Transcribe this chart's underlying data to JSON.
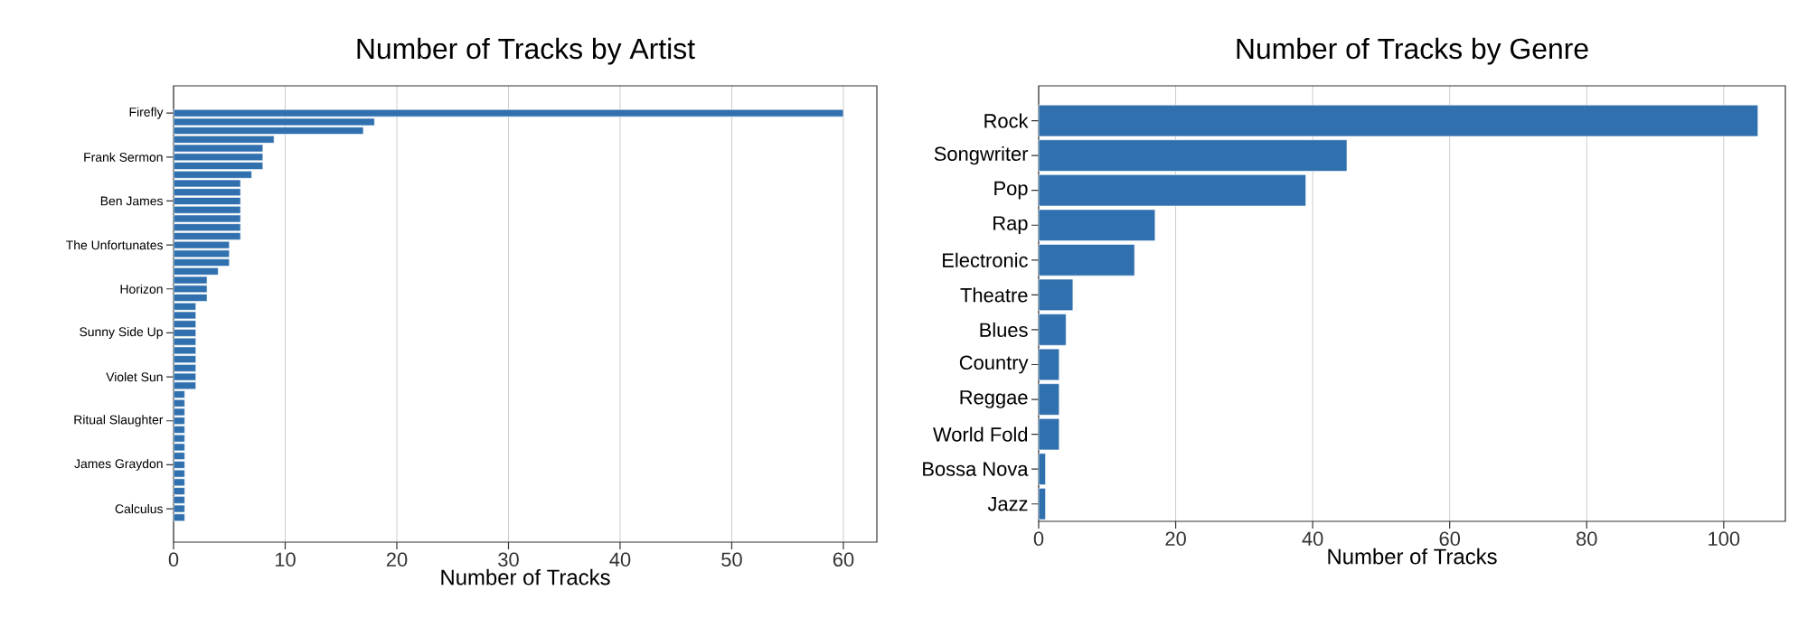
{
  "chart_data": [
    {
      "type": "bar",
      "orientation": "horizontal",
      "title": "Number of Tracks by Artist",
      "xlabel": "Number of Tracks",
      "categories": [
        "Firefly",
        null,
        null,
        null,
        null,
        "Frank Sermon",
        null,
        null,
        null,
        null,
        "Ben James",
        null,
        null,
        null,
        null,
        "The Unfortunates",
        null,
        null,
        null,
        null,
        "Horizon",
        null,
        null,
        null,
        null,
        "Sunny Side Up",
        null,
        null,
        null,
        null,
        "Violet Sun",
        null,
        null,
        null,
        null,
        "Ritual Slaughter",
        null,
        null,
        null,
        null,
        "James Graydon",
        null,
        null,
        null,
        null,
        "Calculus",
        null
      ],
      "values": [
        60,
        18,
        17,
        9,
        8,
        8,
        8,
        7,
        6,
        6,
        6,
        6,
        6,
        6,
        6,
        5,
        5,
        5,
        4,
        3,
        3,
        3,
        2,
        2,
        2,
        2,
        2,
        2,
        2,
        2,
        2,
        2,
        1,
        1,
        1,
        1,
        1,
        1,
        1,
        1,
        1,
        1,
        1,
        1,
        1,
        1,
        1
      ],
      "color": "#3070ae",
      "xlim": [
        0,
        63
      ],
      "xticks": [
        0,
        10,
        20,
        30,
        40,
        50,
        60
      ],
      "grid": "x"
    },
    {
      "type": "bar",
      "orientation": "horizontal",
      "title": "Number of Tracks by Genre",
      "xlabel": "Number of Tracks",
      "categories": [
        "Rock",
        "Songwriter",
        "Pop",
        "Rap",
        "Electronic",
        "Theatre",
        "Blues",
        "Country",
        "Reggae",
        "World Fold",
        "Bossa Nova",
        "Jazz"
      ],
      "values": [
        105,
        45,
        39,
        17,
        14,
        5,
        4,
        3,
        3,
        3,
        1,
        1
      ],
      "color": "#3070ae",
      "xlim": [
        0,
        109
      ],
      "xticks": [
        0,
        20,
        40,
        60,
        80,
        100
      ],
      "grid": "x"
    }
  ]
}
